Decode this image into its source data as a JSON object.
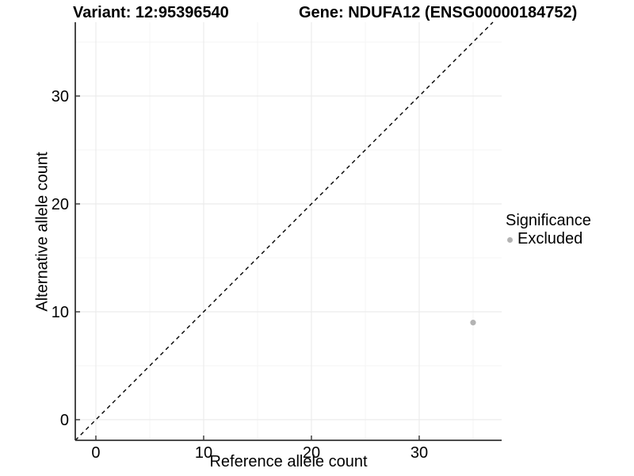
{
  "header": {
    "variant_title": "Variant: 12:95396540",
    "gene_title": "Gene: NDUFA12 (ENSG00000184752)"
  },
  "legend": {
    "title": "Significance",
    "items": [
      {
        "label": "Excluded",
        "color": "#b3b3b3"
      }
    ]
  },
  "chart_data": {
    "type": "scatter",
    "title": "Variant: 12:95396540   Gene: NDUFA12 (ENSG00000184752)",
    "xlabel": "Reference allele count",
    "ylabel": "Alternative allele count",
    "xlim": [
      -1.91,
      37.65
    ],
    "ylim": [
      -1.91,
      36.84
    ],
    "x_major_ticks": [
      0,
      10,
      20,
      30
    ],
    "y_major_ticks": [
      0,
      10,
      20,
      30
    ],
    "x_minor_ticks": [
      5,
      15,
      25,
      35
    ],
    "y_minor_ticks": [
      5,
      15,
      25,
      35
    ],
    "grid": true,
    "legend_position": "right",
    "series": [
      {
        "name": "Excluded",
        "color": "#b3b3b3",
        "points": [
          {
            "x": 35,
            "y": 9
          }
        ]
      }
    ],
    "reference_line": {
      "type": "identity",
      "slope": 1,
      "intercept": 0,
      "style": "dashed",
      "color": "#000000"
    },
    "colors": {
      "background": "#ffffff",
      "axis_line": "#333333",
      "tick": "#333333",
      "tick_label": "#000000",
      "grid_major": "#ececec",
      "grid_minor": "#f4f4f4",
      "point": "#b3b3b3"
    }
  }
}
